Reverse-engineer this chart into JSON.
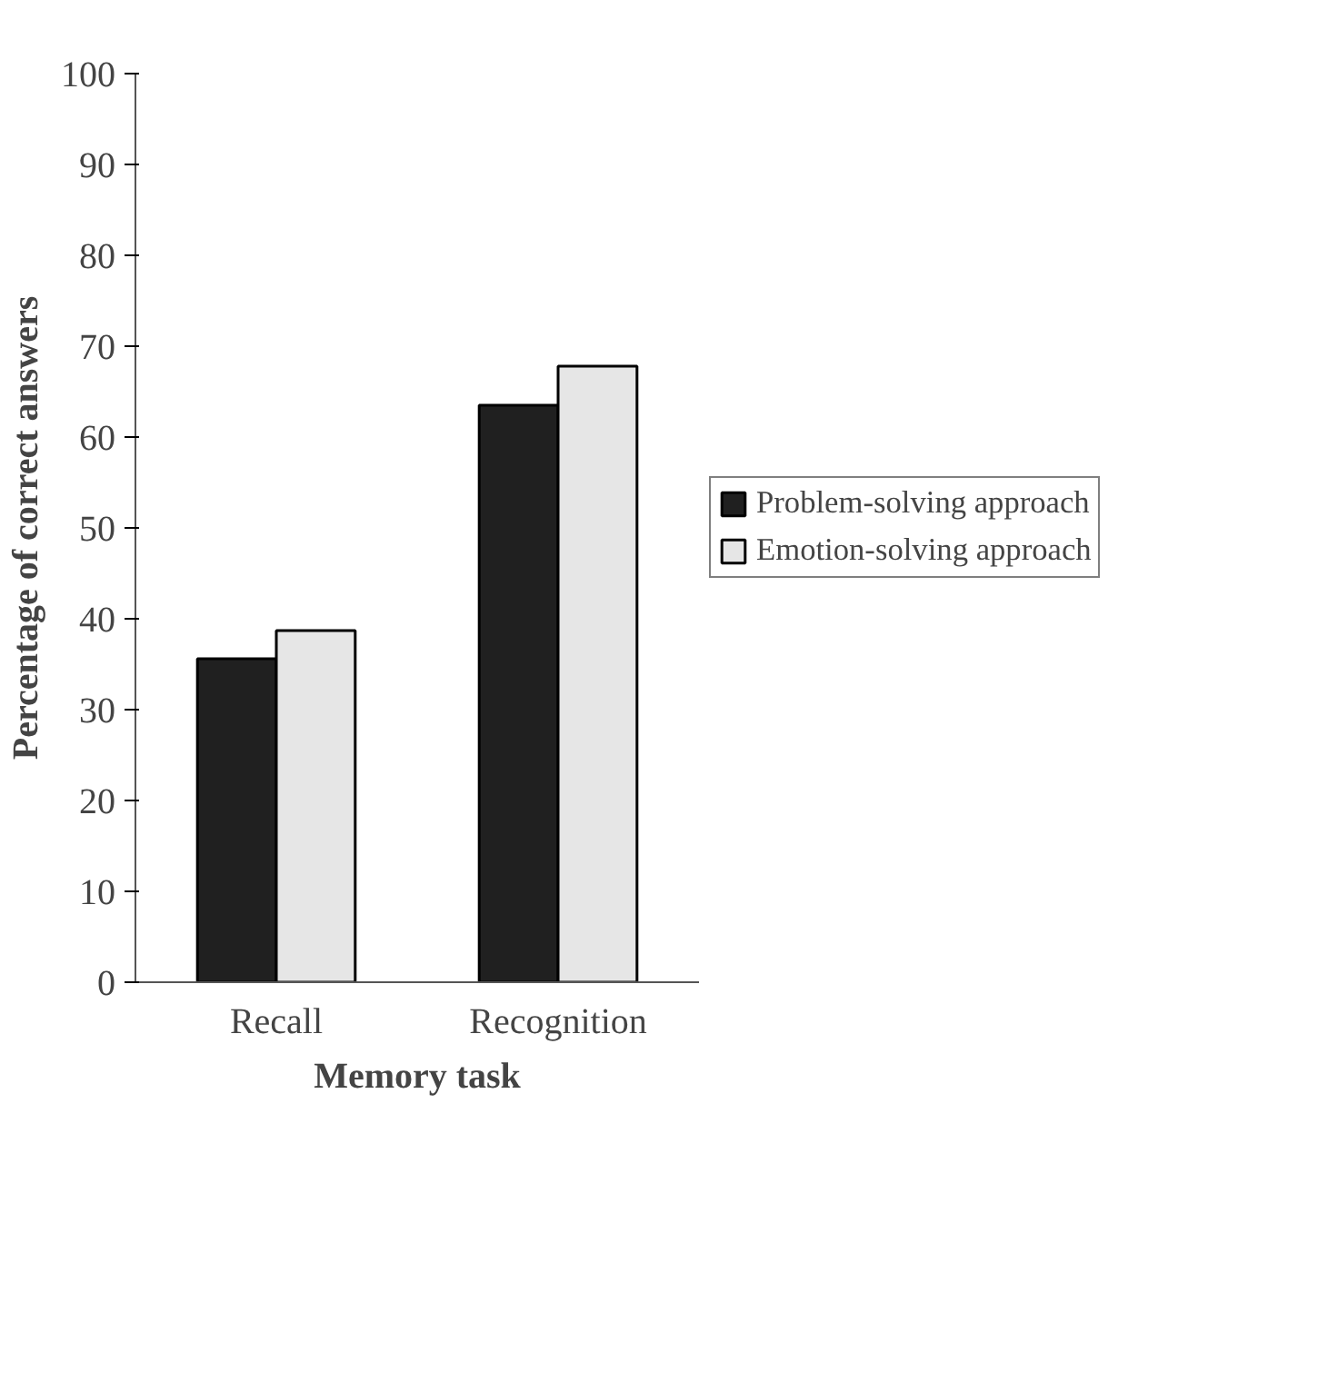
{
  "chart_data": {
    "type": "bar",
    "xlabel": "Memory task",
    "ylabel": "Percentage of correct answers",
    "categories": [
      "Recall",
      "Recognition"
    ],
    "series": [
      {
        "name": "Problem-solving approach",
        "color": "#202020",
        "values": [
          35.6,
          63.5
        ]
      },
      {
        "name": "Emotion-solving approach",
        "color": "#e6e6e6",
        "values": [
          38.7,
          67.8
        ]
      }
    ],
    "ylim": [
      0,
      100
    ],
    "yticks": [
      0,
      10,
      20,
      30,
      40,
      50,
      60,
      70,
      80,
      90,
      100
    ],
    "grid": false,
    "legend": "right"
  }
}
